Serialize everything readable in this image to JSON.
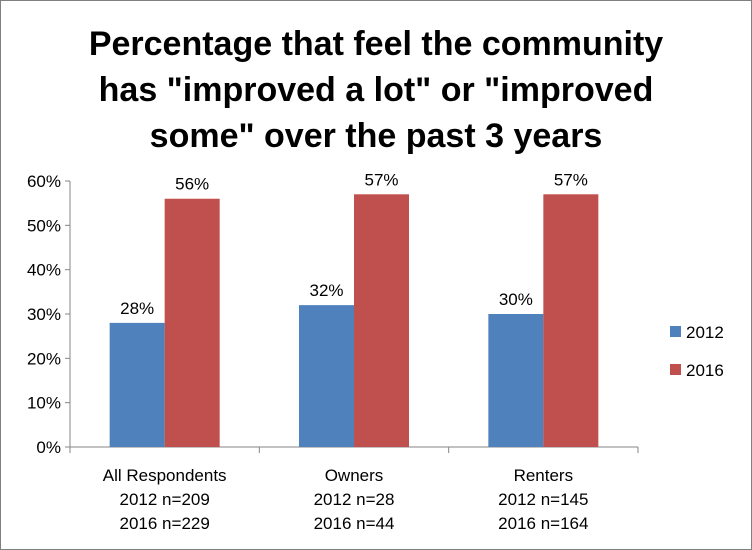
{
  "chart_data": {
    "type": "bar",
    "title": "Percentage that feel the community has \"improved a lot\" or \"improved some\" over the past 3 years",
    "title_lines": [
      "Percentage that feel the community",
      "has \"improved a lot\" or \"improved",
      "some\" over the past 3 years"
    ],
    "categories": [
      [
        "All Respondents",
        "2012 n=209",
        "2016 n=229"
      ],
      [
        "Owners",
        "2012 n=28",
        "2016 n=44"
      ],
      [
        "Renters",
        "2012 n=145",
        "2016 n=164"
      ]
    ],
    "series": [
      {
        "name": "2012",
        "color": "#4f81bd",
        "values": [
          28,
          32,
          30
        ],
        "labels": [
          "28%",
          "32%",
          "30%"
        ]
      },
      {
        "name": "2016",
        "color": "#c0504d",
        "values": [
          56,
          57,
          57
        ],
        "labels": [
          "56%",
          "57%",
          "57%"
        ]
      }
    ],
    "ylim": [
      0,
      60
    ],
    "yticks": [
      0,
      10,
      20,
      30,
      40,
      50,
      60
    ],
    "ytick_labels": [
      "0%",
      "10%",
      "20%",
      "30%",
      "40%",
      "50%",
      "60%"
    ],
    "xlabel": "",
    "ylabel": "",
    "grid": false,
    "legend_position": "right"
  }
}
